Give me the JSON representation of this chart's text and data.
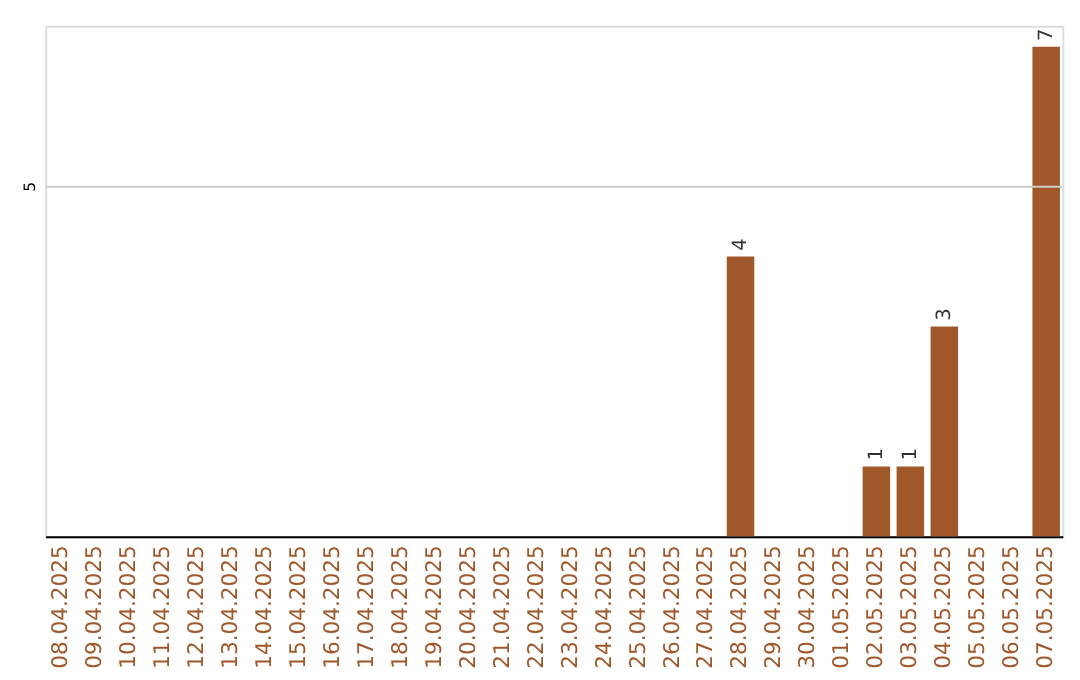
{
  "chart_data": {
    "type": "bar",
    "categories": [
      "08.04.2025",
      "09.04.2025",
      "10.04.2025",
      "11.04.2025",
      "12.04.2025",
      "13.04.2025",
      "14.04.2025",
      "15.04.2025",
      "16.04.2025",
      "17.04.2025",
      "18.04.2025",
      "19.04.2025",
      "20.04.2025",
      "21.04.2025",
      "22.04.2025",
      "23.04.2025",
      "24.04.2025",
      "25.04.2025",
      "26.04.2025",
      "27.04.2025",
      "28.04.2025",
      "29.04.2025",
      "30.04.2025",
      "01.05.2025",
      "02.05.2025",
      "03.05.2025",
      "04.05.2025",
      "05.05.2025",
      "06.05.2025",
      "07.05.2025"
    ],
    "values": [
      null,
      null,
      null,
      null,
      null,
      null,
      null,
      null,
      null,
      null,
      null,
      null,
      null,
      null,
      null,
      null,
      null,
      null,
      null,
      null,
      4,
      null,
      null,
      null,
      1,
      1,
      3,
      null,
      null,
      7
    ],
    "value_labels": [
      null,
      null,
      null,
      null,
      null,
      null,
      null,
      null,
      null,
      null,
      null,
      null,
      null,
      null,
      null,
      null,
      null,
      null,
      null,
      null,
      "4",
      null,
      null,
      null,
      "1",
      "1",
      "3",
      null,
      null,
      "7"
    ],
    "color": "#a0582a",
    "ylim": [
      0,
      7.3
    ],
    "ref_lines": [
      {
        "axis": "y",
        "value": 5,
        "label": "5",
        "color": "#cccccc"
      }
    ]
  }
}
